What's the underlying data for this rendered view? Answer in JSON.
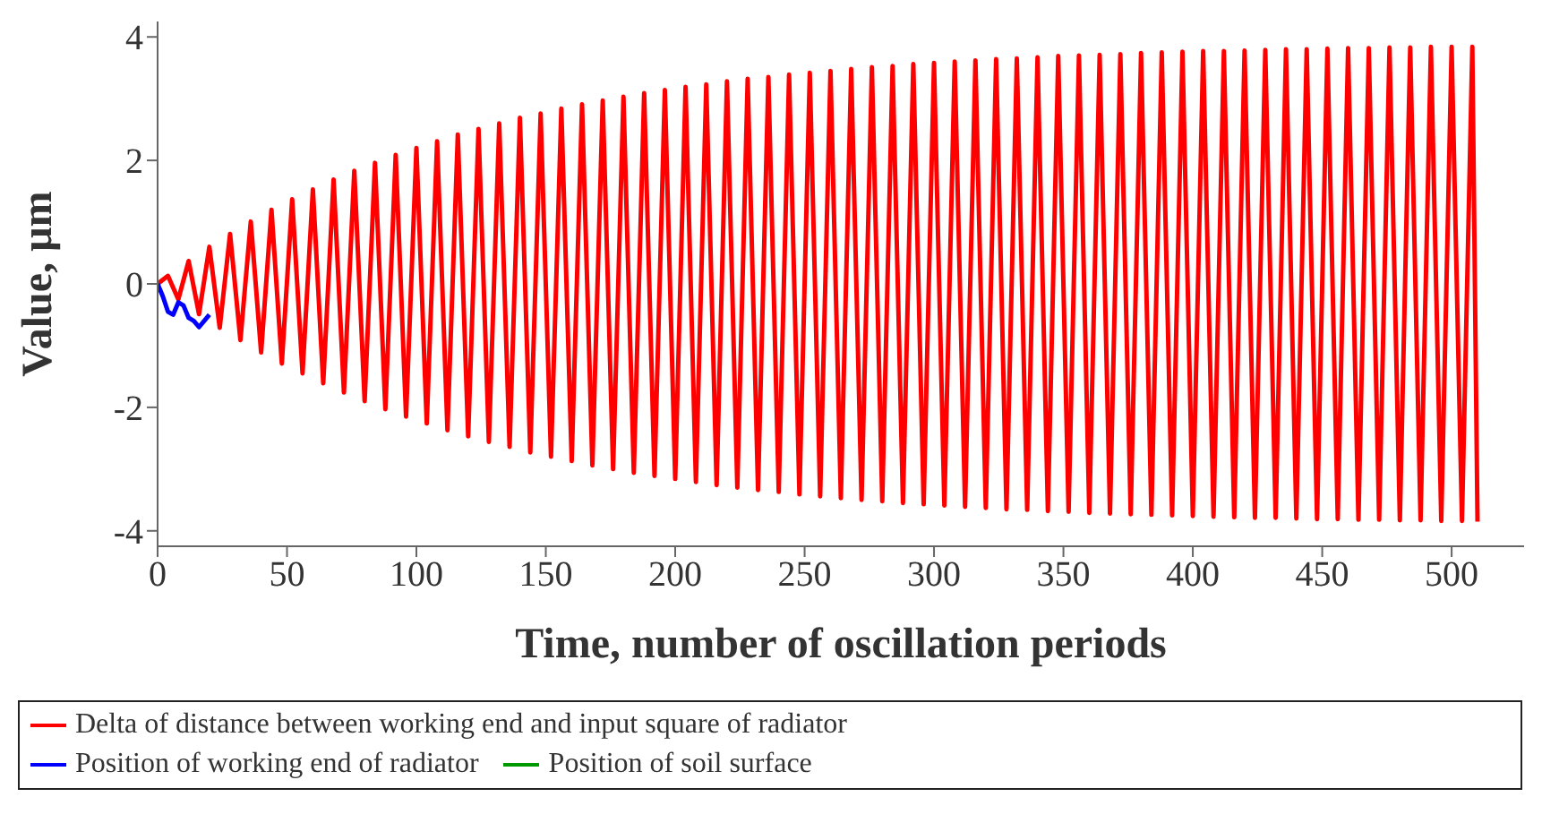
{
  "chart_data": {
    "type": "line",
    "xlabel": "Time, number of oscillation periods",
    "ylabel": "Value, µm",
    "xlim": [
      0,
      528
    ],
    "xticks": [
      0,
      50,
      100,
      150,
      200,
      250,
      300,
      350,
      400,
      450,
      500
    ],
    "ylim": [
      -4.25,
      4.25
    ],
    "yticks": [
      -4,
      -2,
      0,
      2,
      4
    ],
    "grid": false,
    "legend": "bottom",
    "marker": "none",
    "line_style": "solid",
    "series": [
      {
        "name": "Delta of distance between working end and input square of radiator",
        "color": "#ff0000",
        "x": [
          0,
          4,
          8,
          12,
          16,
          20,
          24,
          28,
          32,
          36,
          40,
          44,
          48,
          52,
          56,
          60,
          64,
          68,
          72,
          76,
          80,
          84,
          88,
          92,
          96,
          100,
          104,
          108,
          112,
          116,
          120,
          124,
          128,
          132,
          136,
          140,
          144,
          148,
          152,
          156,
          160,
          164,
          168,
          172,
          176,
          180,
          184,
          188,
          192,
          196,
          200,
          204,
          208,
          212,
          216,
          220,
          224,
          228,
          232,
          236,
          240,
          244,
          248,
          252,
          256,
          260,
          264,
          268,
          272,
          276,
          280,
          284,
          288,
          292,
          296,
          300,
          304,
          308,
          312,
          316,
          320,
          324,
          328,
          332,
          336,
          340,
          344,
          348,
          352,
          356,
          360,
          364,
          368,
          372,
          376,
          380,
          384,
          388,
          392,
          396,
          400,
          404,
          408,
          412,
          416,
          420,
          424,
          428,
          432,
          436,
          440,
          444,
          448,
          452,
          456,
          460,
          464,
          468,
          472,
          476,
          480,
          484,
          488,
          492,
          496,
          500,
          504,
          508,
          510
        ],
        "values": [
          0,
          0.13,
          -0.25,
          0.37,
          -0.49,
          0.6,
          -0.71,
          0.81,
          -0.91,
          1.01,
          -1.11,
          1.2,
          -1.29,
          1.37,
          -1.45,
          1.53,
          -1.61,
          1.69,
          -1.76,
          1.83,
          -1.9,
          1.96,
          -2.03,
          2.09,
          -2.15,
          2.2,
          -2.26,
          2.31,
          -2.37,
          2.42,
          -2.47,
          2.51,
          -2.56,
          2.6,
          -2.64,
          2.69,
          -2.73,
          2.76,
          -2.8,
          2.84,
          -2.87,
          2.91,
          -2.94,
          2.97,
          -3.0,
          3.03,
          -3.06,
          3.09,
          -3.11,
          3.14,
          -3.16,
          3.19,
          -3.21,
          3.23,
          -3.26,
          3.28,
          -3.3,
          3.32,
          -3.34,
          3.35,
          -3.37,
          3.39,
          -3.41,
          3.42,
          -3.44,
          3.45,
          -3.47,
          3.48,
          -3.5,
          3.51,
          -3.52,
          3.53,
          -3.55,
          3.56,
          -3.57,
          3.58,
          -3.59,
          3.6,
          -3.61,
          3.62,
          -3.63,
          3.64,
          -3.65,
          3.65,
          -3.66,
          3.67,
          -3.68,
          3.69,
          -3.69,
          3.7,
          -3.71,
          3.71,
          -3.72,
          3.72,
          -3.73,
          3.74,
          -3.74,
          3.75,
          -3.75,
          3.76,
          -3.76,
          3.77,
          -3.77,
          3.77,
          -3.78,
          3.78,
          -3.79,
          3.79,
          -3.79,
          3.8,
          -3.8,
          3.8,
          -3.81,
          3.81,
          -3.81,
          3.82,
          -3.82,
          3.82,
          -3.82,
          3.83,
          -3.83,
          3.83,
          -3.83,
          3.84,
          -3.84,
          3.84,
          -3.84,
          3.84,
          -3.85
        ]
      },
      {
        "name": "Position of working end of radiator",
        "color": "#0000ff",
        "x": [
          0,
          2,
          4,
          6,
          8,
          10,
          12,
          14,
          16,
          18,
          20
        ],
        "values": [
          0,
          -0.2,
          -0.45,
          -0.5,
          -0.3,
          -0.35,
          -0.55,
          -0.6,
          -0.7,
          -0.6,
          -0.5
        ]
      },
      {
        "name": "Position of soil surface",
        "color": "#009900"
      }
    ]
  }
}
